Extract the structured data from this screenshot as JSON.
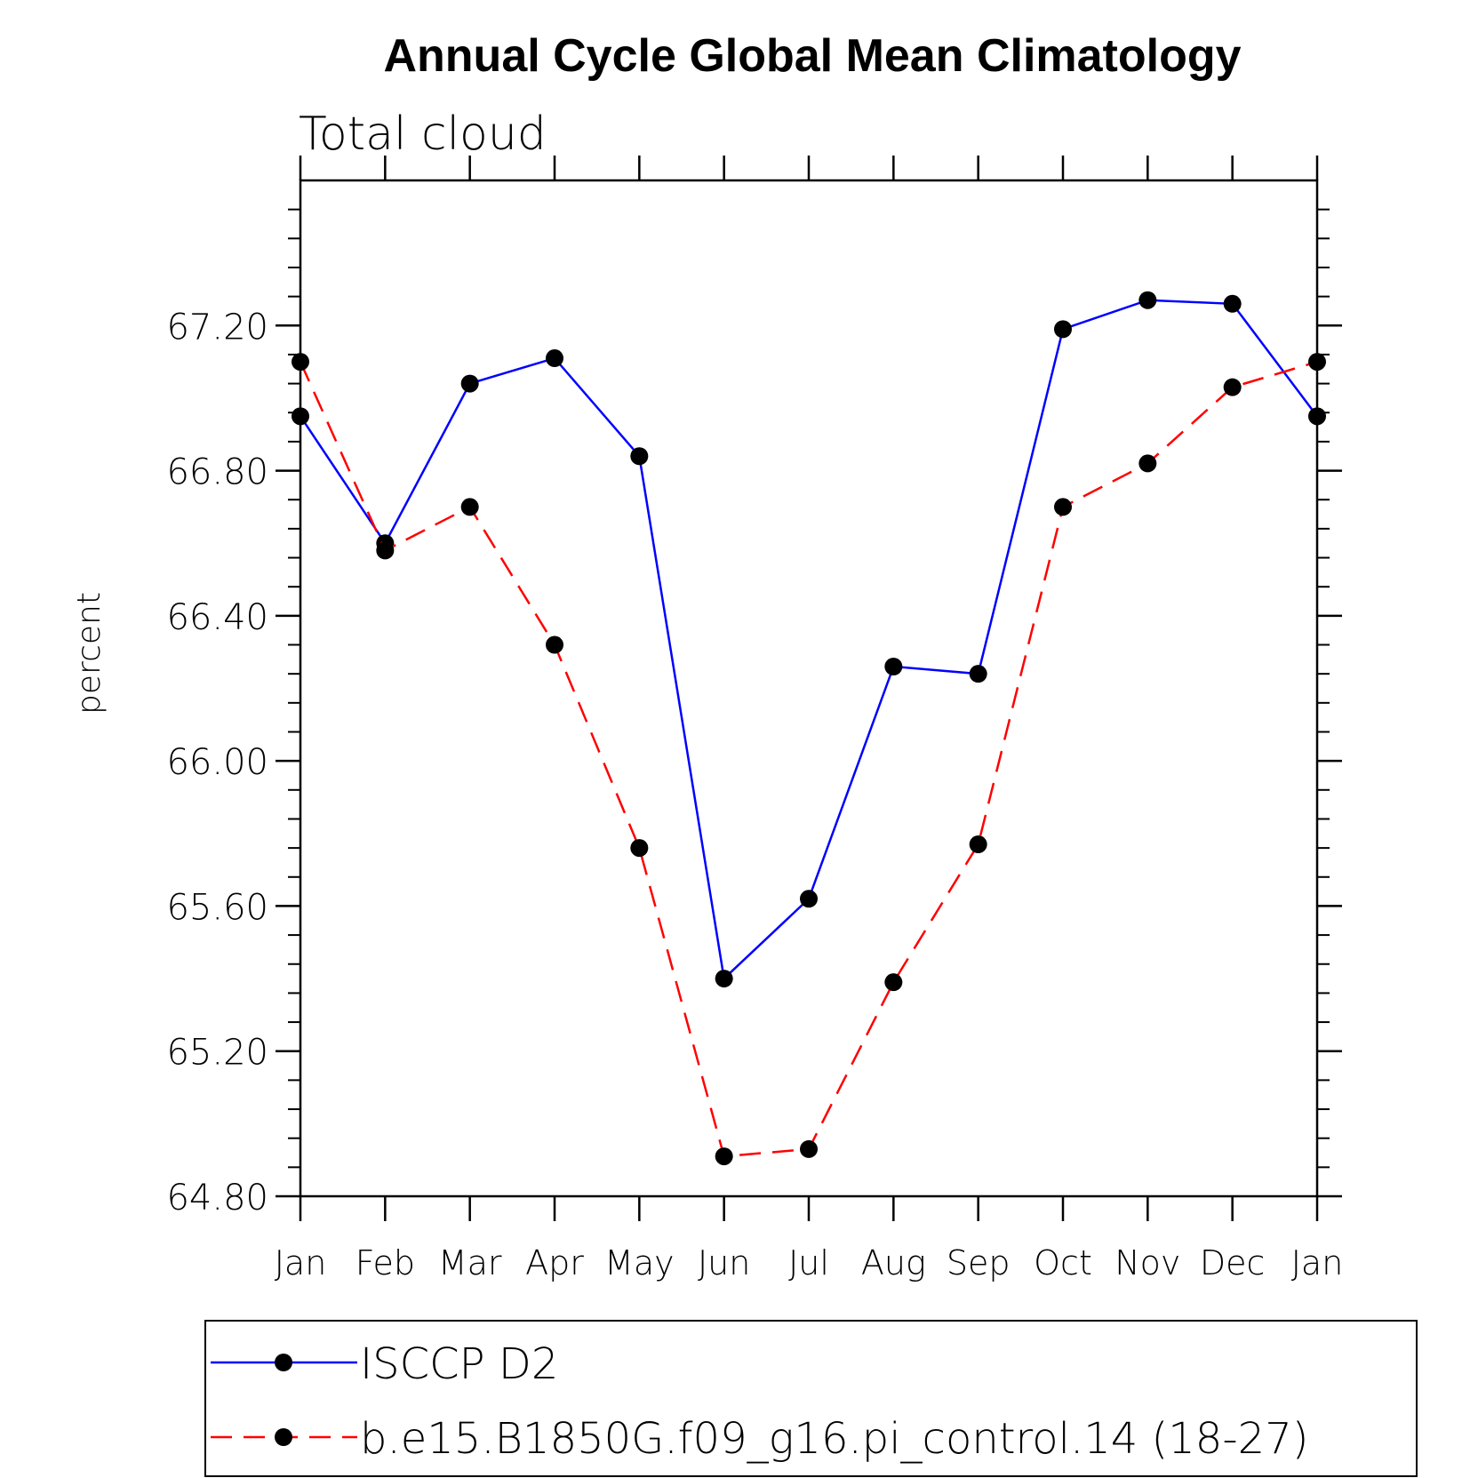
{
  "chart_data": {
    "type": "line",
    "title": "Annual Cycle Global Mean Climatology",
    "subtitle": "Total cloud",
    "ylabel": "percent",
    "xlabel": "",
    "categories": [
      "Jan",
      "Feb",
      "Mar",
      "Apr",
      "May",
      "Jun",
      "Jul",
      "Aug",
      "Sep",
      "Oct",
      "Nov",
      "Dec",
      "Jan"
    ],
    "ylim": [
      64.8,
      67.6
    ],
    "yticks": [
      "64.80",
      "65.20",
      "65.60",
      "66.00",
      "66.40",
      "66.80",
      "67.20"
    ],
    "grid": false,
    "legend_position": "bottom",
    "series": [
      {
        "name": "ISCCP D2",
        "color": "#0000ff",
        "dash": "solid",
        "marker": "filled-circle",
        "values": [
          66.95,
          66.6,
          67.04,
          67.11,
          66.84,
          65.4,
          65.62,
          66.26,
          66.24,
          67.19,
          67.27,
          67.26,
          66.95
        ]
      },
      {
        "name": "b.e15.B1850G.f09_g16.pi_control.14 (18-27)",
        "color": "#ff0000",
        "dash": "dashed",
        "marker": "filled-circle",
        "values": [
          67.1,
          66.58,
          66.7,
          66.32,
          65.76,
          64.91,
          64.93,
          65.39,
          65.77,
          66.7,
          66.82,
          67.03,
          67.1
        ]
      }
    ]
  }
}
